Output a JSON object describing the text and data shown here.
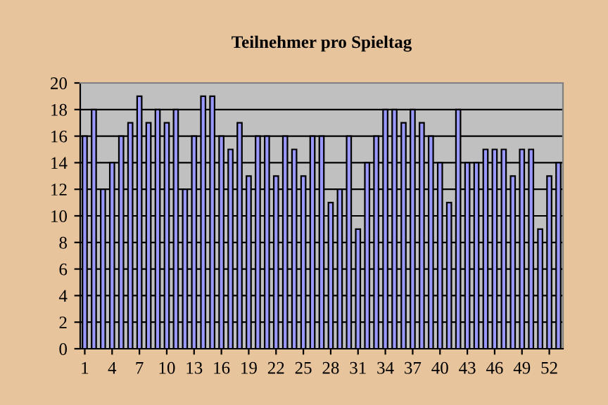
{
  "chart_data": {
    "type": "bar",
    "title": "Teilnehmer pro Spieltag",
    "categories": [
      "1",
      null,
      null,
      "4",
      null,
      null,
      "7",
      null,
      null,
      "10",
      null,
      null,
      "13",
      null,
      null,
      "16",
      null,
      null,
      "19",
      null,
      null,
      "22",
      null,
      null,
      "25",
      null,
      null,
      "28",
      null,
      null,
      "31",
      null,
      null,
      "34",
      null,
      null,
      "37",
      null,
      null,
      "40",
      null,
      null,
      "43",
      null,
      null,
      "46",
      null,
      null,
      "49",
      null,
      null,
      "52",
      null
    ],
    "values": [
      16,
      18,
      12,
      14,
      16,
      17,
      19,
      17,
      18,
      17,
      18,
      12,
      16,
      19,
      19,
      16,
      15,
      17,
      13,
      16,
      16,
      13,
      16,
      15,
      13,
      16,
      16,
      11,
      12,
      16,
      9,
      14,
      16,
      18,
      18,
      17,
      18,
      17,
      16,
      14,
      11,
      18,
      14,
      14,
      15,
      15,
      15,
      13,
      15,
      15,
      9,
      13,
      14
    ],
    "color": "#9999ff",
    "ylim": [
      0,
      20
    ],
    "yticks": [
      0,
      2,
      4,
      6,
      8,
      10,
      12,
      14,
      16,
      18,
      20
    ],
    "grid": "y"
  }
}
